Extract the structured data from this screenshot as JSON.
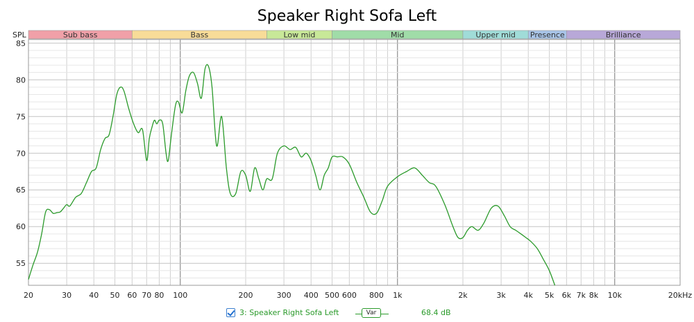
{
  "chart_data": {
    "type": "line",
    "title": "Speaker Right Sofa Left",
    "ylabel": "SPL",
    "xscale": "log",
    "xlim": [
      20,
      20000
    ],
    "ylim": [
      52,
      85.5
    ],
    "grid": true,
    "x_ticks": [
      20,
      30,
      40,
      50,
      60,
      70,
      80,
      100,
      200,
      300,
      400,
      500,
      600,
      800,
      1000,
      2000,
      3000,
      4000,
      5000,
      6000,
      7000,
      8000,
      10000,
      20000
    ],
    "x_tick_labels": [
      "20",
      "30",
      "40",
      "50",
      "60",
      "70",
      "80",
      "100",
      "200",
      "300",
      "400",
      "500",
      "600",
      "800",
      "1k",
      "2k",
      "3k",
      "4k",
      "5k",
      "6k",
      "7k",
      "8k",
      "10k",
      "20kHz"
    ],
    "y_ticks": [
      55,
      60,
      65,
      70,
      75,
      80,
      85
    ],
    "bands": [
      {
        "label": "Sub bass",
        "from": 20,
        "to": 60,
        "color": "#f0a0a8"
      },
      {
        "label": "Bass",
        "from": 60,
        "to": 250,
        "color": "#f8dc98"
      },
      {
        "label": "Low mid",
        "from": 250,
        "to": 500,
        "color": "#c8e898"
      },
      {
        "label": "Mid",
        "from": 500,
        "to": 2000,
        "color": "#a0dca8"
      },
      {
        "label": "Upper mid",
        "from": 2000,
        "to": 4000,
        "color": "#a0dcd8"
      },
      {
        "label": "Presence",
        "from": 4000,
        "to": 6000,
        "color": "#a8c4e8"
      },
      {
        "label": "Brilliance",
        "from": 6000,
        "to": 20000,
        "color": "#b8a8d8"
      }
    ],
    "series": [
      {
        "name": "3: Speaker Right Sofa Left",
        "color": "#2a9a2a",
        "x": [
          20,
          21,
          22,
          23,
          24,
          25,
          26,
          27,
          28,
          29,
          30,
          31,
          33,
          35,
          37,
          39,
          41,
          43,
          45,
          47,
          49,
          51,
          53,
          55,
          58,
          61,
          64,
          67,
          70,
          72,
          74,
          76,
          78,
          80,
          83,
          86,
          88,
          91,
          95,
          98,
          102,
          106,
          110,
          115,
          120,
          125,
          130,
          135,
          140,
          147,
          155,
          163,
          170,
          180,
          190,
          200,
          210,
          220,
          230,
          240,
          250,
          265,
          280,
          300,
          320,
          340,
          360,
          380,
          400,
          420,
          440,
          460,
          480,
          500,
          530,
          560,
          600,
          650,
          700,
          750,
          800,
          850,
          900,
          1000,
          1100,
          1200,
          1300,
          1400,
          1500,
          1650,
          1800,
          1900,
          2000,
          2100,
          2200,
          2350,
          2500,
          2700,
          2900,
          3100,
          3300,
          3500,
          3700,
          3900,
          4100,
          4400,
          4700,
          5000,
          5300
        ],
        "values": [
          52.8,
          54.8,
          56.5,
          59.0,
          62.0,
          62.3,
          61.8,
          61.9,
          62.0,
          62.5,
          63.0,
          62.8,
          64.0,
          64.5,
          66.0,
          67.5,
          68.0,
          70.5,
          72.0,
          72.5,
          75.0,
          78.0,
          79.0,
          78.5,
          76.0,
          74.0,
          72.8,
          73.2,
          69.0,
          72.0,
          73.5,
          74.5,
          74.0,
          74.5,
          74.0,
          70.0,
          69.0,
          72.5,
          76.5,
          77.0,
          75.5,
          78.5,
          80.5,
          81.0,
          79.5,
          77.5,
          81.5,
          81.8,
          79.0,
          71.0,
          75.0,
          68.0,
          64.5,
          64.5,
          67.5,
          67.0,
          64.8,
          68.0,
          66.5,
          65.0,
          66.5,
          66.5,
          70.0,
          71.0,
          70.5,
          70.8,
          69.5,
          70.0,
          69.0,
          67.0,
          65.0,
          67.0,
          68.0,
          69.5,
          69.5,
          69.5,
          68.5,
          66.0,
          64.0,
          62.0,
          61.8,
          63.5,
          65.5,
          66.8,
          67.5,
          68.0,
          67.0,
          66.0,
          65.5,
          63.0,
          60.0,
          58.5,
          58.5,
          59.5,
          60.0,
          59.5,
          60.5,
          62.5,
          62.8,
          61.5,
          60.0,
          59.5,
          59.0,
          58.5,
          58.0,
          57.0,
          55.5,
          54.0,
          52.0
        ]
      }
    ]
  },
  "legend": {
    "series_label": "3: Speaker Right Sofa Left",
    "var_label": "Var",
    "value_text": "68.4 dB",
    "checked": true
  }
}
